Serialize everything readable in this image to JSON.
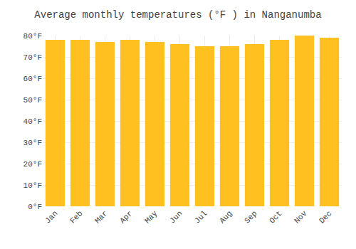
{
  "chart_data": {
    "type": "bar",
    "title": "Average monthly temperatures (°F ) in Nanganumba",
    "categories": [
      "Jan",
      "Feb",
      "Mar",
      "Apr",
      "May",
      "Jun",
      "Jul",
      "Aug",
      "Sep",
      "Oct",
      "Nov",
      "Dec"
    ],
    "values": [
      78,
      78,
      77,
      78,
      77,
      76,
      75,
      75,
      76,
      78,
      80,
      79
    ],
    "color": "#FFC020",
    "ylim": [
      0,
      80
    ],
    "yticks": [
      {
        "value": 0,
        "label": "0°F"
      },
      {
        "value": 10,
        "label": "10°F"
      },
      {
        "value": 20,
        "label": "20°F"
      },
      {
        "value": 30,
        "label": "30°F"
      },
      {
        "value": 40,
        "label": "40°F"
      },
      {
        "value": 50,
        "label": "50°F"
      },
      {
        "value": 60,
        "label": "60°F"
      },
      {
        "value": 70,
        "label": "70°F"
      },
      {
        "value": 80,
        "label": "80°F"
      }
    ],
    "grid": true
  }
}
